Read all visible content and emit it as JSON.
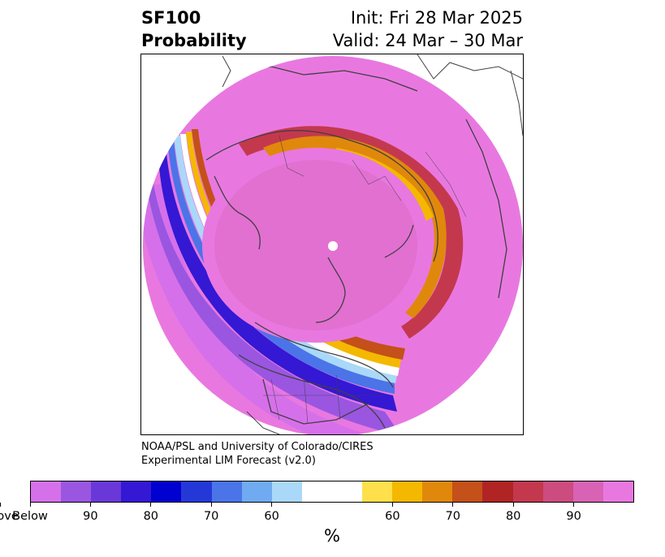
{
  "title": {
    "variable": "SF100",
    "subtitle": "Probability",
    "init": "Init: Fri 28 Mar 2025",
    "valid": "Valid: 24 Mar – 30 Mar"
  },
  "credit": {
    "line1": "NOAA/PSL and University of Colorado/CIRES",
    "line2": "Experimental LIM Forecast (v2.0)"
  },
  "colorbar": {
    "units": "%",
    "colors": [
      "#d670ea",
      "#9a56e0",
      "#6a38d8",
      "#3418d4",
      "#0000d0",
      "#2438d8",
      "#4a74e8",
      "#70aaf0",
      "#aad8f8",
      "#ffffff",
      "#ffe04a",
      "#f4b800",
      "#e0880c",
      "#c4501a",
      "#b02424",
      "#c4384e",
      "#cc4c80",
      "#d862b4",
      "#e878e0"
    ],
    "ticks": [
      {
        "label": "Below"
      },
      {
        "label": "90"
      },
      {
        "label": "80"
      },
      {
        "label": "70"
      },
      {
        "label": "60"
      },
      {
        "label": "60"
      },
      {
        "label": "70"
      },
      {
        "label": "80"
      },
      {
        "label": "90"
      },
      {
        "label": "Above"
      }
    ]
  },
  "map": {
    "projection": "north polar stereographic",
    "field": "probability of above/below normal",
    "land_outline_color": "#404040"
  }
}
